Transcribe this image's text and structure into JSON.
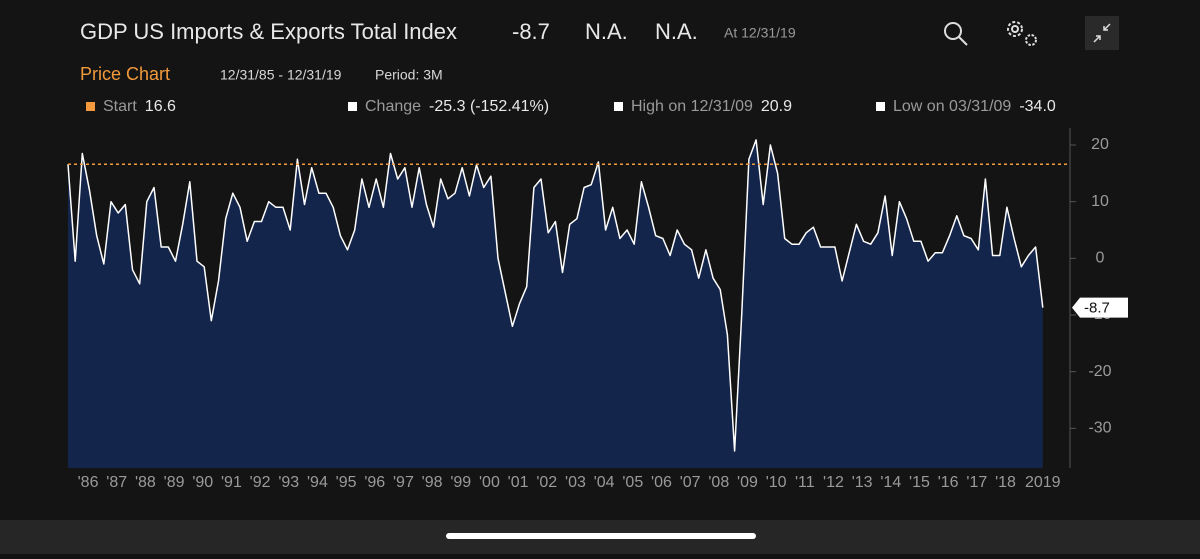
{
  "header": {
    "title": "GDP US Imports & Exports Total Index",
    "last": "-8.7",
    "field2": "N.A.",
    "field3": "N.A.",
    "as_of": "At 12/31/19",
    "tab": "Price Chart",
    "range": "12/31/85 - 12/31/19",
    "period": "Period: 3M"
  },
  "stats": [
    {
      "label": "Start",
      "value": "16.6"
    },
    {
      "label": "Change",
      "value": "-25.3 (-152.41%)"
    },
    {
      "label": "High on 12/31/09",
      "value": "20.9"
    },
    {
      "label": "Low on 03/31/09",
      "value": "-34.0"
    }
  ],
  "chart_data": {
    "type": "area",
    "color": "#ffffff",
    "fill": "#14254b",
    "start_line_color": "#f39a3c",
    "x": [
      1985.75,
      1986.0,
      1986.25,
      1986.5,
      1986.75,
      1987.0,
      1987.25,
      1987.5,
      1987.75,
      1988.0,
      1988.25,
      1988.5,
      1988.75,
      1989.0,
      1989.25,
      1989.5,
      1989.75,
      1990.0,
      1990.25,
      1990.5,
      1990.75,
      1991.0,
      1991.25,
      1991.5,
      1991.75,
      1992.0,
      1992.25,
      1992.5,
      1992.75,
      1993.0,
      1993.25,
      1993.5,
      1993.75,
      1994.0,
      1994.25,
      1994.5,
      1994.75,
      1995.0,
      1995.25,
      1995.5,
      1995.75,
      1996.0,
      1996.25,
      1996.5,
      1996.75,
      1997.0,
      1997.25,
      1997.5,
      1997.75,
      1998.0,
      1998.25,
      1998.5,
      1998.75,
      1999.0,
      1999.25,
      1999.5,
      1999.75,
      2000.0,
      2000.25,
      2000.5,
      2000.75,
      2001.0,
      2001.25,
      2001.5,
      2001.75,
      2002.0,
      2002.25,
      2002.5,
      2002.75,
      2003.0,
      2003.25,
      2003.5,
      2003.75,
      2004.0,
      2004.25,
      2004.5,
      2004.75,
      2005.0,
      2005.25,
      2005.5,
      2005.75,
      2006.0,
      2006.25,
      2006.5,
      2006.75,
      2007.0,
      2007.25,
      2007.5,
      2007.75,
      2008.0,
      2008.25,
      2008.5,
      2008.75,
      2009.0,
      2009.25,
      2009.5,
      2009.75,
      2010.0,
      2010.25,
      2010.5,
      2010.75,
      2011.0,
      2011.25,
      2011.5,
      2011.75,
      2012.0,
      2012.25,
      2012.5,
      2012.75,
      2013.0,
      2013.25,
      2013.5,
      2013.75,
      2014.0,
      2014.25,
      2014.5,
      2014.75,
      2015.0,
      2015.25,
      2015.5,
      2015.75,
      2016.0,
      2016.25,
      2016.5,
      2016.75,
      2017.0,
      2017.25,
      2017.5,
      2017.75,
      2018.0,
      2018.25,
      2018.5,
      2018.75,
      2019.0,
      2019.25,
      2019.5,
      2019.75
    ],
    "values": [
      16.6,
      -0.5,
      18.5,
      12,
      4,
      -1,
      10,
      8,
      9.5,
      -2,
      -4.5,
      10,
      12.5,
      2,
      2,
      -0.5,
      6,
      13.5,
      -0.5,
      -1.5,
      -11,
      -4,
      7,
      11.5,
      9,
      3,
      6.5,
      6.5,
      10,
      9,
      9,
      5,
      17.5,
      9.5,
      16,
      11.5,
      11.5,
      9,
      4,
      1.5,
      5,
      14,
      9,
      14,
      9,
      18.5,
      14,
      16,
      9,
      16,
      9.5,
      5.5,
      14,
      10.5,
      11.5,
      16,
      11,
      16.5,
      12.5,
      14.5,
      0,
      -6,
      -12,
      -8,
      -5,
      12.5,
      14,
      4.5,
      6.5,
      -2.5,
      6,
      7,
      12.5,
      13,
      17,
      5,
      9,
      3.5,
      5,
      2.5,
      13.5,
      9,
      4,
      3.5,
      0.5,
      5,
      2.5,
      1.5,
      -3.5,
      1.5,
      -3.5,
      -5.5,
      -13.5,
      -34,
      -10,
      17.5,
      20.9,
      9.5,
      20,
      15,
      3.5,
      2.5,
      2.5,
      4.5,
      5.5,
      2,
      2,
      2,
      -4,
      1,
      6,
      3,
      2.5,
      4.5,
      11,
      0.5,
      10,
      7,
      3,
      3,
      -0.5,
      1,
      1,
      4,
      7.5,
      4,
      3.5,
      1.5,
      14,
      0.5,
      0.5,
      9,
      3.5,
      -1.5,
      0.5,
      2,
      -8.7
    ],
    "xlim": [
      1985.75,
      2020.7
    ],
    "ylim": [
      -37,
      23
    ],
    "yticks": [
      -30,
      -20,
      -10,
      0,
      10,
      20
    ],
    "xticks": [
      {
        "value": 1986.45,
        "label": "'86"
      },
      {
        "value": 1987.45,
        "label": "'87"
      },
      {
        "value": 1988.45,
        "label": "'88"
      },
      {
        "value": 1989.45,
        "label": "'89"
      },
      {
        "value": 1990.45,
        "label": "'90"
      },
      {
        "value": 1991.45,
        "label": "'91"
      },
      {
        "value": 1992.45,
        "label": "'92"
      },
      {
        "value": 1993.45,
        "label": "'93"
      },
      {
        "value": 1994.45,
        "label": "'94"
      },
      {
        "value": 1995.45,
        "label": "'95"
      },
      {
        "value": 1996.45,
        "label": "'96"
      },
      {
        "value": 1997.45,
        "label": "'97"
      },
      {
        "value": 1998.45,
        "label": "'98"
      },
      {
        "value": 1999.45,
        "label": "'99"
      },
      {
        "value": 2000.45,
        "label": "'00"
      },
      {
        "value": 2001.45,
        "label": "'01"
      },
      {
        "value": 2002.45,
        "label": "'02"
      },
      {
        "value": 2003.45,
        "label": "'03"
      },
      {
        "value": 2004.45,
        "label": "'04"
      },
      {
        "value": 2005.45,
        "label": "'05"
      },
      {
        "value": 2006.45,
        "label": "'06"
      },
      {
        "value": 2007.45,
        "label": "'07"
      },
      {
        "value": 2008.45,
        "label": "'08"
      },
      {
        "value": 2009.45,
        "label": "'09"
      },
      {
        "value": 2010.45,
        "label": "'10"
      },
      {
        "value": 2011.45,
        "label": "'11"
      },
      {
        "value": 2012.45,
        "label": "'12"
      },
      {
        "value": 2013.45,
        "label": "'13"
      },
      {
        "value": 2014.45,
        "label": "'14"
      },
      {
        "value": 2015.45,
        "label": "'15"
      },
      {
        "value": 2016.45,
        "label": "'16"
      },
      {
        "value": 2017.45,
        "label": "'17"
      },
      {
        "value": 2018.45,
        "label": "'18"
      },
      {
        "value": 2019.75,
        "label": "2019"
      }
    ]
  }
}
